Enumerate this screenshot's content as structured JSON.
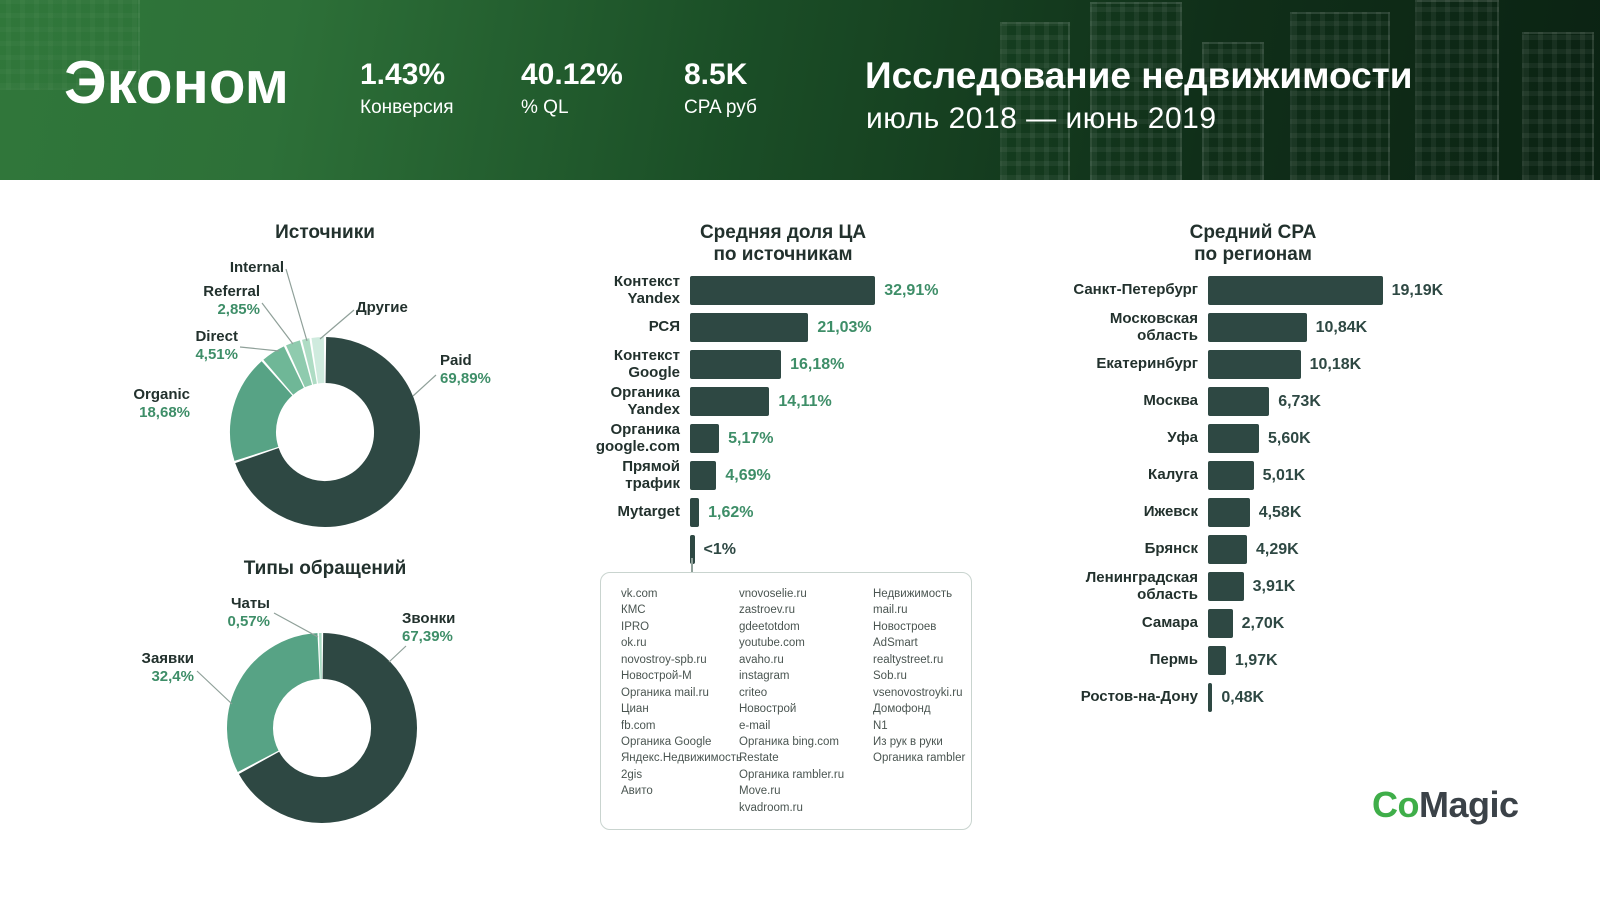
{
  "header": {
    "segment": "Эконом",
    "stats": [
      {
        "value": "1.43%",
        "label": "Конверсия"
      },
      {
        "value": "40.12%",
        "label": "% QL"
      },
      {
        "value": "8.5K",
        "label": "CPA руб"
      }
    ],
    "title": "Исследование недвижимости",
    "subtitle": "июль 2018 — июнь 2019"
  },
  "colors": {
    "bar_dark": "#2E4843",
    "green": "#57A385",
    "value_green": "#3E8E68",
    "header_green_start": "#30773A",
    "header_green_end": "#0B2313"
  },
  "chart_data": [
    {
      "type": "pie",
      "title": "Источники",
      "labels": [
        "Paid",
        "Organic",
        "Direct",
        "Referral",
        "Internal",
        "Другие"
      ],
      "values": [
        69.89,
        18.68,
        4.51,
        2.85,
        1.6,
        2.47
      ],
      "display_values": [
        "69,89%",
        "18,68%",
        "4,51%",
        "2,85%",
        "",
        ""
      ],
      "colors": [
        "#2E4843",
        "#57A385",
        "#6FB797",
        "#8FCBAE",
        "#AEDCC4",
        "#CFEBDE"
      ],
      "donut": true,
      "start_angle_deg": 0,
      "direction": "clockwise"
    },
    {
      "type": "pie",
      "title": "Типы обращений",
      "labels": [
        "Звонки",
        "Заявки",
        "Чаты"
      ],
      "values": [
        67.39,
        32.4,
        0.57
      ],
      "display_values": [
        "67,39%",
        "32,4%",
        "0,57%"
      ],
      "colors": [
        "#2E4843",
        "#57A385",
        "#A8DCC3"
      ],
      "donut": true,
      "start_angle_deg": 0,
      "direction": "clockwise"
    },
    {
      "type": "bar",
      "title": "Средняя доля ЦА\nпо источникам",
      "orientation": "horizontal",
      "categories": [
        "Контекст\nYandex",
        "РСЯ",
        "Контекст\nGoogle",
        "Органика\nYandex",
        "Органика\ngoogle.com",
        "Прямой\nтрафик",
        "Mytarget",
        ""
      ],
      "values": [
        32.91,
        21.03,
        16.18,
        14.11,
        5.17,
        4.69,
        1.62,
        0.8
      ],
      "display_values": [
        "32,91%",
        "21,03%",
        "16,18%",
        "14,11%",
        "5,17%",
        "4,69%",
        "1,62%",
        "<1%"
      ],
      "xlim": [
        0,
        35
      ],
      "bar_color": "#2E4843"
    },
    {
      "type": "bar",
      "title": "Средний CPA\nпо регионам",
      "orientation": "horizontal",
      "categories": [
        "Санкт-Петербург",
        "Московская\nобласть",
        "Екатеринбург",
        "Москва",
        "Уфа",
        "Калуга",
        "Ижевск",
        "Брянск",
        "Ленинградская\nобласть",
        "Самара",
        "Пермь",
        "Ростов-на-Дону"
      ],
      "values": [
        19.19,
        10.84,
        10.18,
        6.73,
        5.6,
        5.01,
        4.58,
        4.29,
        3.91,
        2.7,
        1.97,
        0.48
      ],
      "display_values": [
        "19,19K",
        "10,84K",
        "10,18K",
        "6,73K",
        "5,60K",
        "5,01K",
        "4,58K",
        "4,29K",
        "3,91K",
        "2,70K",
        "1,97K",
        "0,48K"
      ],
      "xlim": [
        0,
        20
      ],
      "bar_color": "#2E4843"
    }
  ],
  "sources_box": {
    "columns": [
      [
        "vk.com",
        "КМС",
        "IPRO",
        "ok.ru",
        "novostroy-spb.ru",
        "Новострой-М",
        "Органика mail.ru",
        "Циан",
        "fb.com",
        "Органика Google",
        "Яндекс.Недвижимость",
        "2gis",
        "Авито"
      ],
      [
        "vnovoselie.ru",
        "zastroev.ru",
        "gdeetotdom",
        "youtube.com",
        "avaho.ru",
        "instagram",
        "criteo",
        "Новострой",
        "e-mail",
        "Органика bing.com",
        "Restate",
        "Органика rambler.ru",
        "Move.ru",
        "kvadroom.ru"
      ],
      [
        "Недвижимость mail.ru",
        "Новостроев",
        "AdSmart",
        "realtystreet.ru",
        "Sob.ru",
        "vsenovostroyki.ru",
        "Домофонд",
        "N1",
        "Из рук в руки",
        "Органика rambler"
      ]
    ]
  },
  "logo": {
    "part1": "Co",
    "part2": "Magic"
  }
}
